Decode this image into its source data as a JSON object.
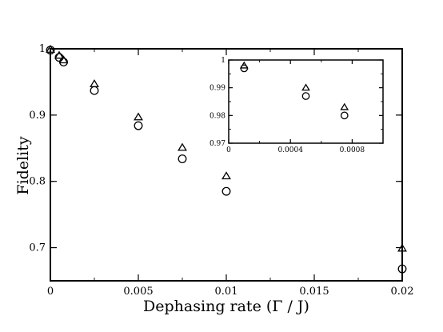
{
  "chart_data": {
    "type": "scatter",
    "xlabel": "Dephasing rate (Γ / J)",
    "ylabel": "Fidelity",
    "xlim": [
      0,
      0.02
    ],
    "ylim": [
      0.65,
      1.0
    ],
    "xticks": [
      {
        "value": 0,
        "label": "0"
      },
      {
        "value": 0.005,
        "label": "0.005"
      },
      {
        "value": 0.01,
        "label": "0.01"
      },
      {
        "value": 0.015,
        "label": "0.015"
      },
      {
        "value": 0.02,
        "label": "0.02"
      }
    ],
    "yticks": [
      {
        "value": 0.7,
        "label": "0.7"
      },
      {
        "value": 0.8,
        "label": "0.8"
      },
      {
        "value": 0.9,
        "label": "0.9"
      },
      {
        "value": 1.0,
        "label": "1"
      }
    ],
    "grid": false,
    "legend": "none",
    "series": [
      {
        "marker": "triangle",
        "color": "#000000",
        "x": [
          0,
          0.0005,
          0.00075,
          0.0025,
          0.005,
          0.0075,
          0.01,
          0.02
        ],
        "y": [
          0.999,
          0.99,
          0.983,
          0.947,
          0.897,
          0.851,
          0.808,
          0.699
        ]
      },
      {
        "marker": "circle",
        "color": "#000000",
        "x": [
          0,
          0.0005,
          0.00075,
          0.0025,
          0.005,
          0.0075,
          0.01,
          0.02
        ],
        "y": [
          0.998,
          0.987,
          0.98,
          0.937,
          0.884,
          0.834,
          0.785,
          0.668
        ]
      }
    ],
    "inset": {
      "xlim": [
        0,
        0.001
      ],
      "ylim": [
        0.97,
        1.0
      ],
      "xticks": [
        {
          "value": 0,
          "label": "0"
        },
        {
          "value": 0.0004,
          "label": "0.0004"
        },
        {
          "value": 0.0008,
          "label": "0.0008"
        }
      ],
      "yticks": [
        {
          "value": 0.97,
          "label": "0.97"
        },
        {
          "value": 0.98,
          "label": "0.98"
        },
        {
          "value": 0.99,
          "label": "0.99"
        },
        {
          "value": 1.0,
          "label": "1"
        }
      ],
      "series": [
        {
          "marker": "triangle",
          "x": [
            0.0001,
            0.0005,
            0.00075
          ],
          "y": [
            0.998,
            0.99,
            0.983
          ]
        },
        {
          "marker": "circle",
          "x": [
            0.0001,
            0.0005,
            0.00075
          ],
          "y": [
            0.997,
            0.987,
            0.98
          ]
        }
      ]
    }
  }
}
